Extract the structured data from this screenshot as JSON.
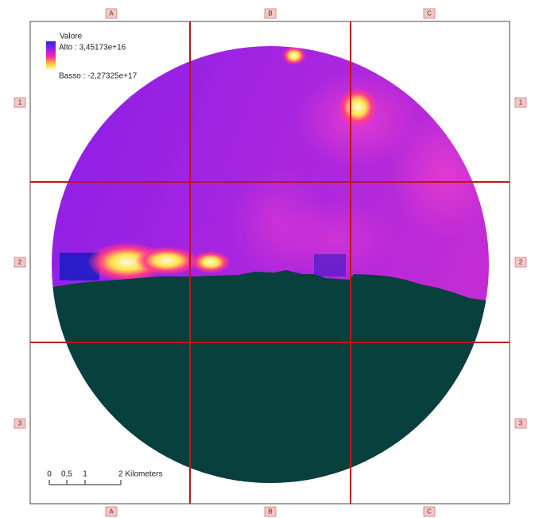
{
  "legend": {
    "title": "Valore",
    "high": "Alto : 3,45173e+16",
    "low": "Basso : -2,27325e+17"
  },
  "grid": {
    "columns": [
      "A",
      "B",
      "C"
    ],
    "rows": [
      "1",
      "2",
      "3"
    ]
  },
  "scalebar": {
    "labels": [
      "0",
      "0,5",
      "1",
      "2 Kilometers"
    ]
  }
}
